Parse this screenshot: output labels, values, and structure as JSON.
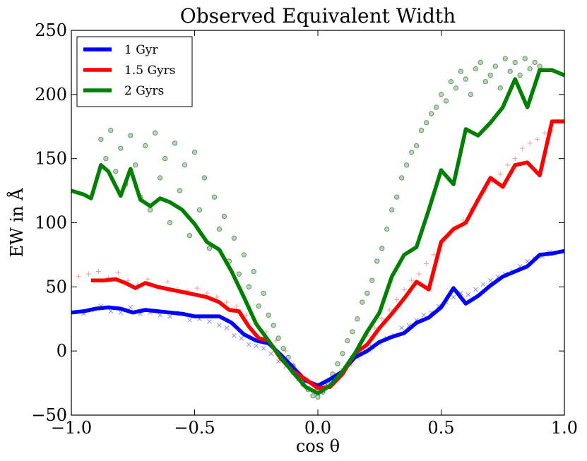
{
  "chart_data": {
    "type": "line",
    "title": "Observed Equivalent Width",
    "xlabel": "cos θ",
    "ylabel": "EW in Å",
    "xlim": [
      -1.0,
      1.0
    ],
    "ylim": [
      -50,
      250
    ],
    "xticks": [
      -1.0,
      -0.5,
      0.0,
      0.5,
      1.0
    ],
    "xtick_labels": [
      "−1.0",
      "−0.5",
      "0.0",
      "0.5",
      "1.0"
    ],
    "yticks": [
      -50,
      0,
      50,
      100,
      150,
      200,
      250
    ],
    "ytick_labels": [
      "−50",
      "0",
      "50",
      "100",
      "150",
      "200",
      "250"
    ],
    "legend_position": "top-left",
    "series": [
      {
        "name": "1 Gyr",
        "color": "#0000ff",
        "x": [
          -1.0,
          -0.95,
          -0.9,
          -0.85,
          -0.8,
          -0.75,
          -0.7,
          -0.65,
          -0.6,
          -0.55,
          -0.5,
          -0.45,
          -0.4,
          -0.35,
          -0.3,
          -0.25,
          -0.2,
          -0.15,
          -0.1,
          -0.05,
          0.0,
          0.05,
          0.1,
          0.15,
          0.2,
          0.25,
          0.3,
          0.35,
          0.4,
          0.45,
          0.5,
          0.55,
          0.6,
          0.65,
          0.7,
          0.75,
          0.8,
          0.85,
          0.9,
          0.95,
          1.0
        ],
        "y": [
          30,
          31,
          33,
          34,
          33,
          30,
          32,
          31,
          30,
          29,
          27,
          27,
          27,
          22,
          13,
          8,
          6,
          -3,
          -13,
          -23,
          -27,
          -22,
          -16,
          -5,
          0,
          7,
          11,
          14,
          22,
          26,
          34,
          49,
          37,
          43,
          51,
          58,
          62,
          66,
          75,
          76,
          78
        ],
        "marker_x": [
          -0.95,
          -0.92,
          -0.88,
          -0.84,
          -0.8,
          -0.76,
          -0.72,
          -0.68,
          -0.64,
          -0.6,
          -0.56,
          -0.52,
          -0.48,
          -0.44,
          -0.4,
          -0.37,
          -0.34,
          -0.31,
          -0.28,
          -0.25,
          -0.22,
          -0.19,
          -0.16,
          -0.13,
          -0.1,
          -0.08,
          -0.06,
          -0.04,
          -0.02,
          0.0,
          0.02,
          0.04,
          0.06,
          0.08,
          0.1,
          0.13,
          0.16,
          0.19,
          0.22,
          0.25,
          0.28,
          0.31,
          0.34,
          0.37,
          0.4,
          0.43,
          0.46,
          0.49,
          0.52,
          0.55,
          0.58,
          0.61,
          0.64,
          0.67,
          0.7,
          0.73,
          0.76,
          0.79,
          0.82,
          0.85,
          0.88,
          0.91,
          0.94
        ],
        "marker_y": [
          29,
          32,
          35,
          31,
          30,
          34,
          29,
          30,
          28,
          27,
          29,
          24,
          25,
          23,
          20,
          18,
          12,
          10,
          5,
          4,
          2,
          -2,
          -8,
          -12,
          -17,
          -22,
          -25,
          -29,
          -31,
          -33,
          -30,
          -27,
          -25,
          -20,
          -15,
          -10,
          -5,
          0,
          3,
          6,
          10,
          12,
          18,
          20,
          24,
          28,
          30,
          35,
          38,
          42,
          45,
          44,
          48,
          52,
          55,
          58,
          60,
          62,
          66,
          70,
          72,
          74,
          77
        ]
      },
      {
        "name": "1.5 Gyrs",
        "color": "#ff0000",
        "x": [
          -0.92,
          -0.87,
          -0.82,
          -0.78,
          -0.74,
          -0.7,
          -0.65,
          -0.6,
          -0.55,
          -0.5,
          -0.45,
          -0.4,
          -0.36,
          -0.32,
          -0.28,
          -0.24,
          -0.2,
          -0.15,
          -0.1,
          -0.05,
          0.0,
          0.05,
          0.1,
          0.15,
          0.2,
          0.25,
          0.3,
          0.35,
          0.4,
          0.45,
          0.5,
          0.55,
          0.6,
          0.65,
          0.7,
          0.75,
          0.8,
          0.85,
          0.9,
          0.95,
          1.0
        ],
        "y": [
          55,
          55,
          56,
          53,
          49,
          53,
          50,
          48,
          46,
          44,
          42,
          38,
          32,
          31,
          19,
          10,
          8,
          -6,
          -16,
          -22,
          -29,
          -28,
          -18,
          -2,
          5,
          18,
          29,
          41,
          54,
          48,
          85,
          95,
          100,
          118,
          135,
          128,
          145,
          147,
          137,
          179,
          179
        ],
        "marker_x": [
          -0.97,
          -0.93,
          -0.89,
          -0.85,
          -0.81,
          -0.77,
          -0.73,
          -0.69,
          -0.65,
          -0.61,
          -0.57,
          -0.53,
          -0.49,
          -0.45,
          -0.41,
          -0.37,
          -0.33,
          -0.29,
          -0.25,
          -0.21,
          -0.17,
          -0.13,
          -0.1,
          -0.07,
          -0.04,
          -0.01,
          0.02,
          0.05,
          0.08,
          0.11,
          0.14,
          0.17,
          0.2,
          0.23,
          0.26,
          0.29,
          0.32,
          0.35,
          0.38,
          0.41,
          0.44,
          0.47,
          0.5,
          0.53,
          0.56,
          0.59,
          0.62,
          0.65,
          0.68,
          0.71,
          0.74,
          0.77,
          0.8,
          0.83,
          0.86,
          0.89,
          0.92,
          0.95
        ],
        "marker_y": [
          58,
          60,
          62,
          57,
          61,
          55,
          52,
          56,
          50,
          54,
          48,
          47,
          49,
          45,
          42,
          38,
          35,
          28,
          22,
          15,
          8,
          0,
          -10,
          -18,
          -24,
          -30,
          -32,
          -28,
          -22,
          -12,
          -4,
          5,
          12,
          18,
          25,
          32,
          40,
          48,
          55,
          60,
          68,
          75,
          82,
          90,
          97,
          102,
          110,
          118,
          125,
          132,
          138,
          145,
          150,
          158,
          162,
          165,
          170,
          172
        ]
      },
      {
        "name": "2 Gyrs",
        "color": "#008000",
        "x": [
          -1.0,
          -0.95,
          -0.92,
          -0.88,
          -0.85,
          -0.8,
          -0.76,
          -0.72,
          -0.68,
          -0.64,
          -0.6,
          -0.55,
          -0.5,
          -0.45,
          -0.4,
          -0.35,
          -0.3,
          -0.25,
          -0.2,
          -0.15,
          -0.1,
          -0.05,
          0.0,
          0.05,
          0.1,
          0.15,
          0.2,
          0.25,
          0.3,
          0.35,
          0.4,
          0.45,
          0.5,
          0.55,
          0.6,
          0.65,
          0.7,
          0.75,
          0.8,
          0.85,
          0.9,
          0.95,
          1.0
        ],
        "y": [
          125,
          122,
          119,
          145,
          140,
          121,
          142,
          118,
          113,
          119,
          116,
          110,
          99,
          85,
          79,
          62,
          42,
          21,
          8,
          -5,
          -17,
          -28,
          -33,
          -27,
          -16,
          -2,
          15,
          30,
          58,
          75,
          81,
          110,
          141,
          130,
          173,
          168,
          178,
          190,
          212,
          190,
          219,
          219,
          215
        ],
        "marker_x": [
          -0.88,
          -0.86,
          -0.84,
          -0.82,
          -0.8,
          -0.78,
          -0.76,
          -0.74,
          -0.72,
          -0.7,
          -0.68,
          -0.66,
          -0.64,
          -0.62,
          -0.6,
          -0.58,
          -0.56,
          -0.54,
          -0.52,
          -0.5,
          -0.48,
          -0.46,
          -0.44,
          -0.42,
          -0.4,
          -0.38,
          -0.36,
          -0.34,
          -0.32,
          -0.3,
          -0.28,
          -0.26,
          -0.24,
          -0.22,
          -0.2,
          -0.18,
          -0.16,
          -0.14,
          -0.12,
          -0.1,
          -0.08,
          -0.06,
          -0.04,
          -0.02,
          0.0,
          0.02,
          0.04,
          0.06,
          0.08,
          0.1,
          0.12,
          0.14,
          0.16,
          0.18,
          0.2,
          0.22,
          0.24,
          0.26,
          0.28,
          0.3,
          0.32,
          0.34,
          0.36,
          0.38,
          0.4,
          0.42,
          0.44,
          0.46,
          0.48,
          0.5,
          0.52,
          0.54,
          0.56,
          0.58,
          0.6,
          0.62,
          0.64,
          0.66,
          0.68,
          0.7,
          0.72,
          0.74,
          0.76,
          0.78,
          0.8,
          0.82,
          0.84,
          0.86,
          0.88,
          0.9
        ],
        "marker_y": [
          165,
          150,
          172,
          140,
          158,
          130,
          168,
          145,
          120,
          160,
          110,
          170,
          135,
          150,
          100,
          162,
          125,
          145,
          90,
          155,
          110,
          135,
          80,
          120,
          95,
          105,
          70,
          88,
          60,
          75,
          50,
          62,
          35,
          45,
          28,
          20,
          10,
          2,
          -5,
          -12,
          -20,
          -26,
          -30,
          -35,
          -36,
          -32,
          -25,
          -18,
          -10,
          -2,
          8,
          15,
          25,
          38,
          45,
          55,
          70,
          80,
          95,
          110,
          120,
          135,
          145,
          155,
          160,
          172,
          178,
          185,
          190,
          200,
          195,
          210,
          205,
          218,
          212,
          200,
          220,
          225,
          210,
          215,
          222,
          205,
          228,
          218,
          225,
          215,
          228,
          220,
          225,
          222
        ]
      }
    ]
  }
}
